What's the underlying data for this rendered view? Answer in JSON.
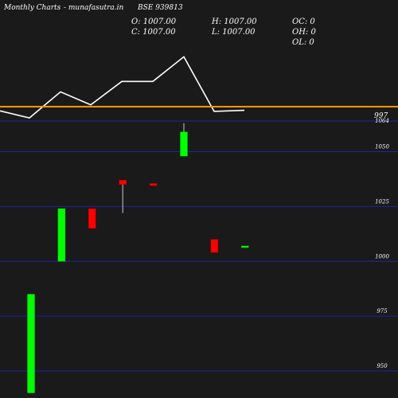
{
  "header": {
    "site": "Monthly Charts",
    "site2": "- munafasutra.in",
    "symbol": "BSE 939813",
    "o": "O: 1007.00",
    "c": "C: 1007.00",
    "h": "H: 1007.00",
    "l": "L: 1007.00",
    "oc": "OC: 0",
    "oh": "OH: 0",
    "ol": "OL: 0"
  },
  "chart_data": {
    "type": "candlestick",
    "price_label": "997",
    "y_ticks": [
      {
        "value": 1064,
        "label": "1064"
      },
      {
        "value": 1050,
        "label": "1050"
      },
      {
        "value": 1025,
        "label": "1025"
      },
      {
        "value": 1000,
        "label": "1000"
      },
      {
        "value": 975,
        "label": "975"
      },
      {
        "value": 950,
        "label": "950"
      }
    ],
    "ylim": [
      940,
      1066
    ],
    "candles": [
      {
        "open": 985,
        "close": 940,
        "high": 985,
        "low": 940,
        "color": "#00ff00"
      },
      {
        "open": 1000,
        "close": 1024,
        "high": 1024,
        "low": 1000,
        "color": "#00ff00"
      },
      {
        "open": 1024,
        "close": 1015,
        "high": 1024,
        "low": 1015,
        "color": "#ff0000"
      },
      {
        "open": 1037,
        "close": 1035,
        "high": 1037,
        "low": 1022,
        "color": "#ff0000"
      },
      {
        "open": 1035.5,
        "close": 1034.5,
        "high": 1035.5,
        "low": 1034.5,
        "color": "#ff0000"
      },
      {
        "open": 1048,
        "close": 1059,
        "high": 1063,
        "low": 1048,
        "color": "#00ff00"
      },
      {
        "open": 1010,
        "close": 1004,
        "high": 1010,
        "low": 1004,
        "color": "#ff0000"
      },
      {
        "open": 1007,
        "close": 1007,
        "high": 1007,
        "low": 1007,
        "color": "#00ff00"
      }
    ],
    "line": [
      {
        "x": 0,
        "v": 4.2
      },
      {
        "x": 37,
        "v": 1.5
      },
      {
        "x": 76,
        "v": 11.5
      },
      {
        "x": 114,
        "v": 6.5
      },
      {
        "x": 153,
        "v": 15.5
      },
      {
        "x": 192,
        "v": 15.5
      },
      {
        "x": 231,
        "v": 25
      },
      {
        "x": 269,
        "v": 4
      },
      {
        "x": 307,
        "v": 4.4
      }
    ],
    "colors": {
      "background": "#1a1a1a",
      "grid": "#2222aa",
      "price_line": "#ff9900",
      "line": "#ffffff"
    }
  }
}
